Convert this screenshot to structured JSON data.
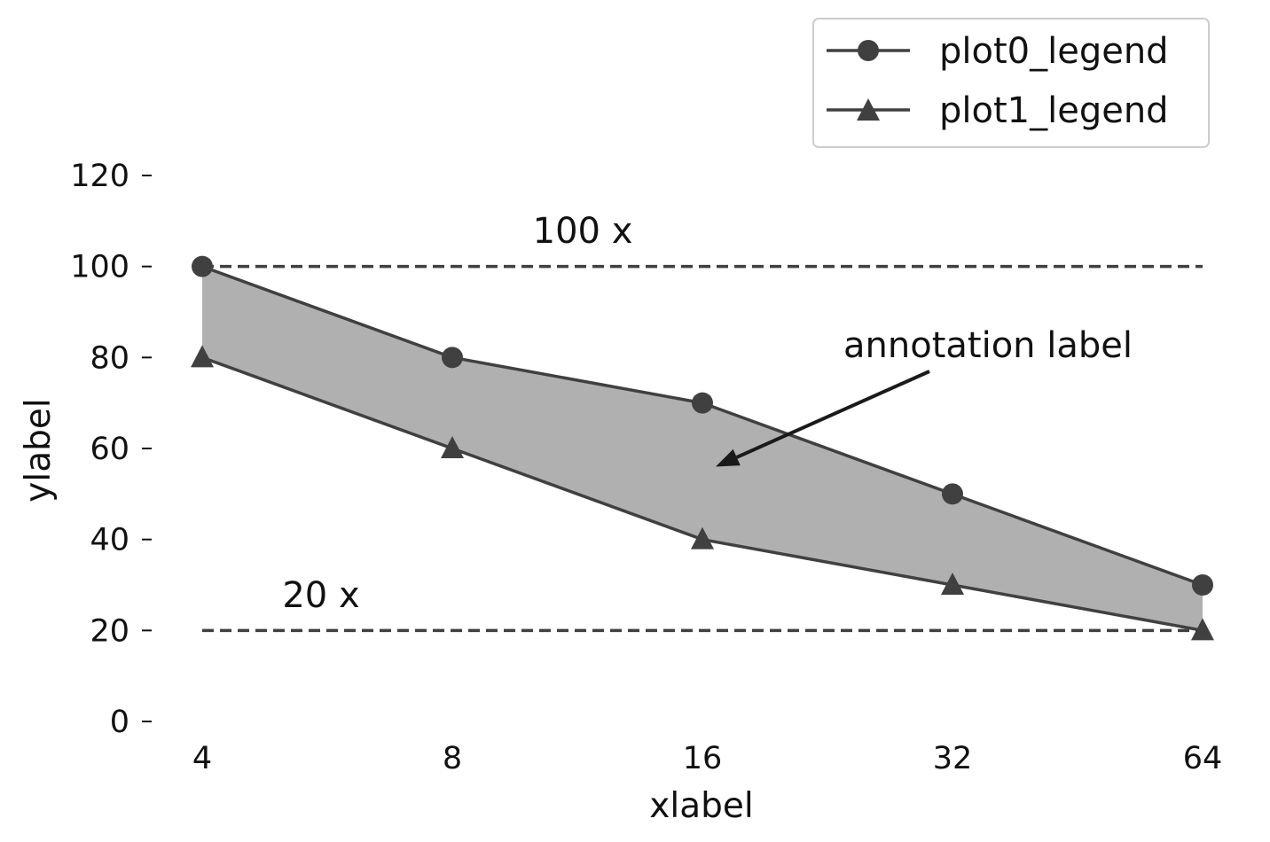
{
  "chart_data": {
    "type": "line",
    "x": [
      4,
      8,
      16,
      32,
      64
    ],
    "x_tick_labels": [
      "4",
      "8",
      "16",
      "32",
      "64"
    ],
    "x_scale": "log2",
    "y_ticks": [
      0,
      20,
      40,
      60,
      80,
      100,
      120
    ],
    "y_tick_labels": [
      "0",
      "20",
      "40",
      "60",
      "80",
      "100",
      "120"
    ],
    "ylim": [
      0,
      120
    ],
    "xlabel": "xlabel",
    "ylabel": "ylabel",
    "grid": false,
    "legend_position": "top-right",
    "series": [
      {
        "name": "plot0_legend",
        "marker": "circle",
        "values": [
          100,
          80,
          70,
          50,
          30
        ]
      },
      {
        "name": "plot1_legend",
        "marker": "triangle",
        "values": [
          80,
          60,
          40,
          30,
          20
        ]
      }
    ],
    "fill_between": {
      "upper": "plot0_legend",
      "lower": "plot1_legend",
      "color": "#b0b0b0"
    },
    "reference_lines": [
      {
        "y": 100,
        "label": "100 x",
        "style": "dashed"
      },
      {
        "y": 20,
        "label": "20 x",
        "style": "dashed"
      }
    ],
    "annotation": {
      "text": "annotation label",
      "points_to": {
        "x": 16.6,
        "y": 56
      }
    },
    "colors": {
      "line": "#404040",
      "marker": "#404040",
      "fill": "#b0b0b0",
      "reference": "#404040",
      "arrow": "#1a1a1a"
    }
  }
}
